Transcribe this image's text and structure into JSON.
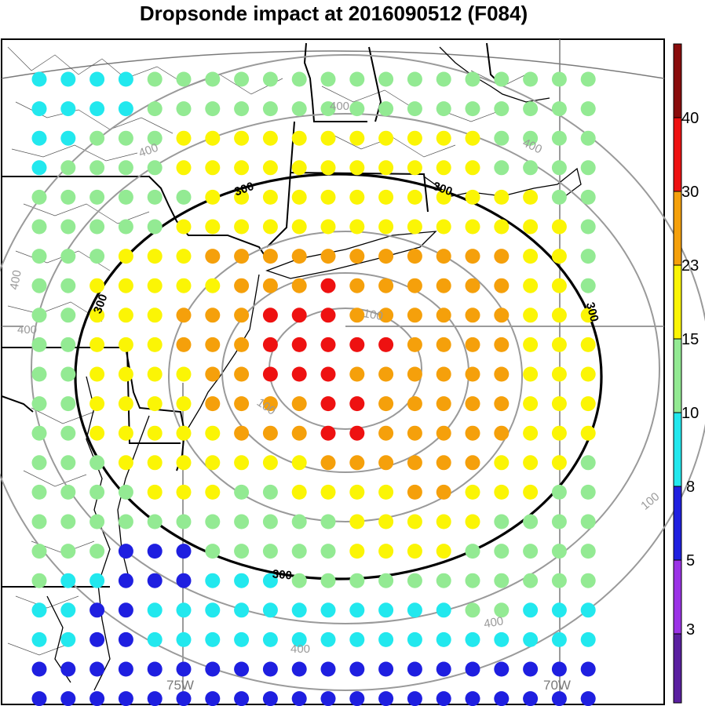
{
  "title": "Dropsonde impact at 2016090512 (F084)",
  "colors": {
    "c3": "#5a1fa0",
    "c5": "#9b33e6",
    "c8": "#1f1fe0",
    "c10": "#22e8ee",
    "c15": "#93ea93",
    "c23": "#fbf505",
    "c30": "#f5a00b",
    "c40": "#ee1111",
    "c50": "#8a0c0c",
    "contour_gray": "#9a9a9a",
    "contour_black": "#000000",
    "border_gray": "#7a7a7a"
  },
  "colorbar": {
    "labels": [
      "3",
      "5",
      "8",
      "10",
      "15",
      "23",
      "30",
      "40"
    ]
  },
  "longitude_labels": [
    "75W",
    "70W"
  ],
  "contour_labels": [
    "100",
    "100",
    "300",
    "300",
    "300",
    "300",
    "300",
    "400",
    "400",
    "400",
    "400",
    "400",
    "400",
    "400"
  ],
  "dot_grid": {
    "legend": "each character = one dot; row order top to bottom; . = no dot; 0=3,1=5,2=8,3=10,4=15,5=23,6=30,7=40",
    "rows": [
      "33334444444444444444",
      "33334444444444444444",
      "33444555555555554444",
      "34444555555555554444",
      "44444455555555555544",
      "44444555555555555554",
      "44455566666666666554",
      "44555556667666666554",
      "44555666777666666555",
      "44555666777776666555",
      "44555566777666666555",
      "44555566667766666555",
      "44555556667766666555",
      "44455555556666665554",
      "44445554455556655544",
      "44444444444555554444",
      "44422244444555544444",
      "43322233344444444444",
      "33223333333333344333",
      "33223333333333333333",
      "22222222222222222222",
      "22222222222222222222"
    ]
  }
}
